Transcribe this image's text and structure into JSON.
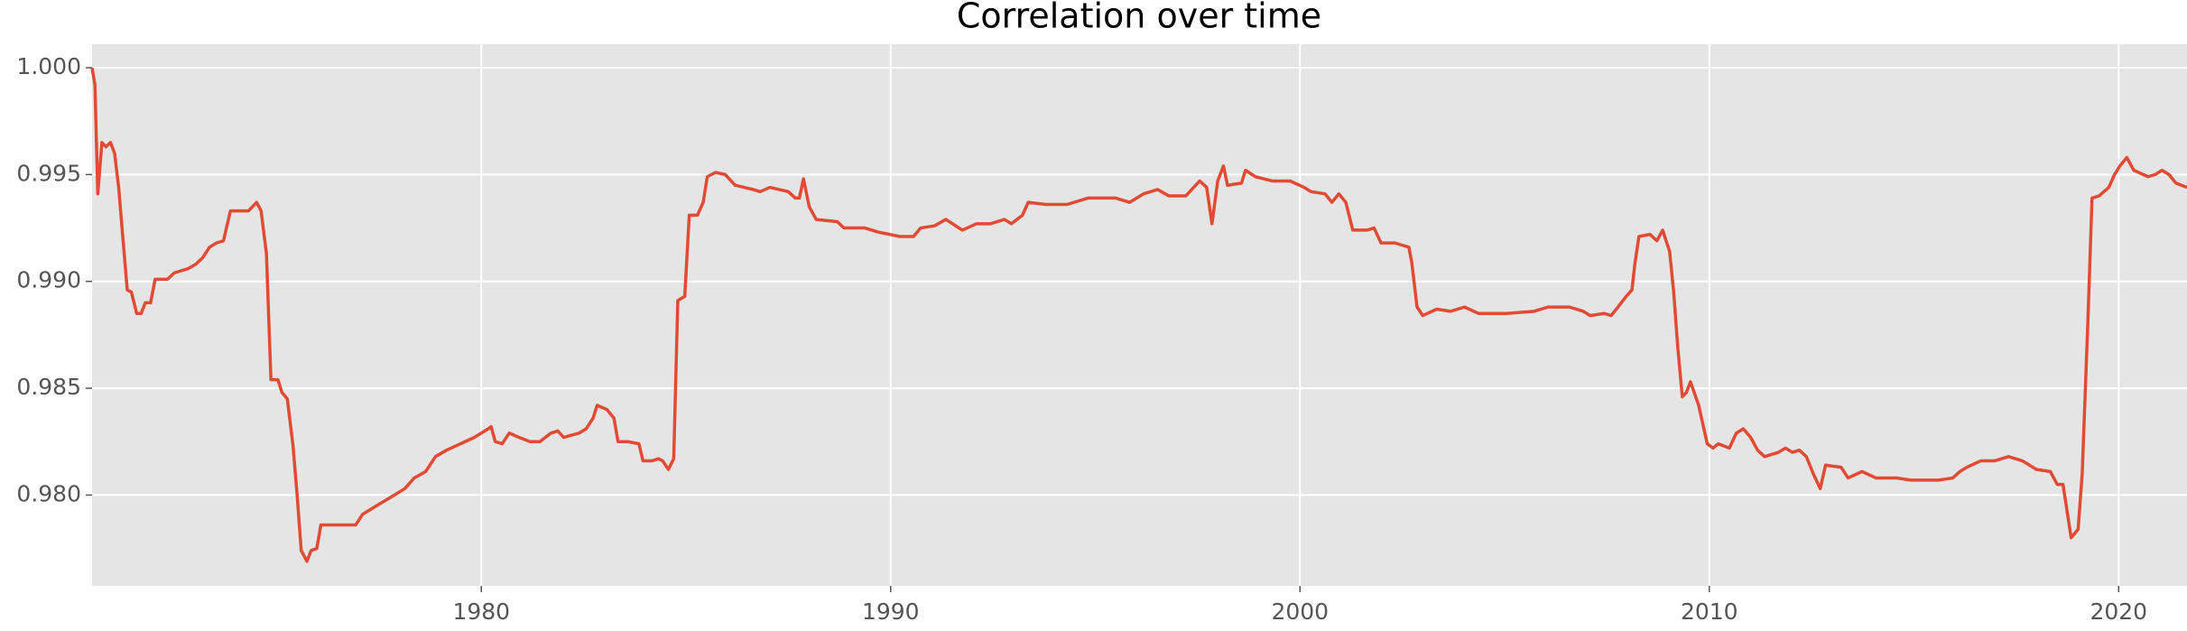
{
  "chart_data": {
    "type": "line",
    "title": "Correlation over time",
    "x": [
      1970.49,
      1970.56,
      1970.63,
      1970.73,
      1970.83,
      1970.94,
      1971.04,
      1971.14,
      1971.24,
      1971.35,
      1971.45,
      1971.58,
      1971.69,
      1971.79,
      1971.92,
      1972.03,
      1972.33,
      1972.5,
      1972.84,
      1973.02,
      1973.19,
      1973.36,
      1973.53,
      1973.7,
      1973.87,
      1974.31,
      1974.51,
      1974.62,
      1974.75,
      1974.86,
      1975.03,
      1975.13,
      1975.26,
      1975.4,
      1975.5,
      1975.6,
      1975.74,
      1975.84,
      1975.98,
      1976.08,
      1976.42,
      1976.59,
      1976.93,
      1977.1,
      1977.44,
      1977.79,
      1978.13,
      1978.36,
      1978.64,
      1978.88,
      1979.15,
      1979.49,
      1979.83,
      1980.17,
      1980.24,
      1980.34,
      1980.51,
      1980.68,
      1980.92,
      1981.19,
      1981.43,
      1981.7,
      1981.87,
      1982.01,
      1982.39,
      1982.56,
      1982.73,
      1982.83,
      1983.07,
      1983.24,
      1983.34,
      1983.58,
      1983.85,
      1983.95,
      1984.16,
      1984.33,
      1984.43,
      1984.57,
      1984.7,
      1984.8,
      1984.97,
      1985.08,
      1985.28,
      1985.42,
      1985.52,
      1985.72,
      1985.96,
      1986.2,
      1986.64,
      1986.81,
      1987.05,
      1987.5,
      1987.67,
      1987.77,
      1987.87,
      1988.01,
      1988.18,
      1988.69,
      1988.86,
      1989.37,
      1989.71,
      1989.98,
      1990.22,
      1990.56,
      1990.73,
      1991.07,
      1991.35,
      1991.75,
      1992.1,
      1992.44,
      1992.78,
      1992.95,
      1993.22,
      1993.36,
      1993.8,
      1994.31,
      1994.82,
      1995.5,
      1995.84,
      1996.18,
      1996.52,
      1996.8,
      1997.21,
      1997.55,
      1997.72,
      1997.85,
      1997.99,
      1998.13,
      1998.23,
      1998.57,
      1998.67,
      1998.91,
      1999.32,
      1999.76,
      2000.1,
      2000.27,
      2000.61,
      2000.78,
      2000.95,
      2001.12,
      2001.29,
      2001.64,
      2001.81,
      2001.98,
      2002.32,
      2002.49,
      2002.66,
      2002.73,
      2002.86,
      2003.0,
      2003.34,
      2003.68,
      2004.02,
      2004.36,
      2005.04,
      2005.72,
      2006.06,
      2006.58,
      2006.92,
      2007.09,
      2007.43,
      2007.6,
      2007.77,
      2007.97,
      2008.11,
      2008.18,
      2008.28,
      2008.55,
      2008.72,
      2008.86,
      2009.03,
      2009.13,
      2009.23,
      2009.34,
      2009.44,
      2009.54,
      2009.74,
      2009.95,
      2010.09,
      2010.22,
      2010.49,
      2010.66,
      2010.83,
      2011.01,
      2011.18,
      2011.35,
      2011.69,
      2011.86,
      2012.03,
      2012.2,
      2012.37,
      2012.54,
      2012.71,
      2012.84,
      2013.22,
      2013.39,
      2013.73,
      2014.07,
      2014.58,
      2014.92,
      2015.26,
      2015.6,
      2015.95,
      2016.12,
      2016.29,
      2016.63,
      2016.97,
      2017.31,
      2017.65,
      2017.99,
      2018.33,
      2018.5,
      2018.64,
      2018.84,
      2019.01,
      2019.11,
      2019.25,
      2019.35,
      2019.52,
      2019.76,
      2019.9,
      2020.03,
      2020.2,
      2020.37,
      2020.72,
      2020.89,
      2021.06,
      2021.23,
      2021.4,
      2021.67
    ],
    "values": [
      1.0,
      0.9992,
      0.9941,
      0.9965,
      0.9963,
      0.9965,
      0.996,
      0.9944,
      0.9921,
      0.9896,
      0.9895,
      0.9885,
      0.9885,
      0.989,
      0.989,
      0.9901,
      0.9901,
      0.9904,
      0.9906,
      0.9908,
      0.9911,
      0.9916,
      0.9918,
      0.9919,
      0.9933,
      0.9933,
      0.9937,
      0.9933,
      0.9913,
      0.9854,
      0.9854,
      0.9848,
      0.9845,
      0.9823,
      0.98,
      0.9774,
      0.9769,
      0.9774,
      0.9775,
      0.9786,
      0.9786,
      0.9786,
      0.9786,
      0.9791,
      0.9795,
      0.9799,
      0.9803,
      0.9808,
      0.9811,
      0.9818,
      0.9821,
      0.9824,
      0.9827,
      0.9831,
      0.9832,
      0.9825,
      0.9824,
      0.9829,
      0.9827,
      0.9825,
      0.9825,
      0.9829,
      0.983,
      0.9827,
      0.9829,
      0.9831,
      0.9836,
      0.9842,
      0.984,
      0.9836,
      0.9825,
      0.9825,
      0.9824,
      0.9816,
      0.9816,
      0.9817,
      0.9816,
      0.9812,
      0.9817,
      0.9891,
      0.9893,
      0.9931,
      0.9931,
      0.9937,
      0.9949,
      0.9951,
      0.995,
      0.9945,
      0.9943,
      0.9942,
      0.9944,
      0.9942,
      0.9939,
      0.9939,
      0.9948,
      0.9935,
      0.9929,
      0.9928,
      0.9925,
      0.9925,
      0.9923,
      0.9922,
      0.9921,
      0.9921,
      0.9925,
      0.9926,
      0.9929,
      0.9924,
      0.9927,
      0.9927,
      0.9929,
      0.9927,
      0.9931,
      0.9937,
      0.9936,
      0.9936,
      0.9939,
      0.9939,
      0.9937,
      0.9941,
      0.9943,
      0.994,
      0.994,
      0.9947,
      0.9944,
      0.9927,
      0.9947,
      0.9954,
      0.9945,
      0.9946,
      0.9952,
      0.9949,
      0.9947,
      0.9947,
      0.9944,
      0.9942,
      0.9941,
      0.9937,
      0.9941,
      0.9937,
      0.9924,
      0.9924,
      0.9925,
      0.9918,
      0.9918,
      0.9917,
      0.9916,
      0.9909,
      0.9888,
      0.9884,
      0.9887,
      0.9886,
      0.9888,
      0.9885,
      0.9885,
      0.9886,
      0.9888,
      0.9888,
      0.9886,
      0.9884,
      0.9885,
      0.9884,
      0.9888,
      0.9893,
      0.9896,
      0.9908,
      0.9921,
      0.9922,
      0.9919,
      0.9924,
      0.9914,
      0.9895,
      0.9869,
      0.9846,
      0.9848,
      0.9853,
      0.9842,
      0.9824,
      0.9822,
      0.9824,
      0.9822,
      0.9829,
      0.9831,
      0.9827,
      0.9821,
      0.9818,
      0.982,
      0.9822,
      0.982,
      0.9821,
      0.9818,
      0.981,
      0.9803,
      0.9814,
      0.9813,
      0.9808,
      0.9811,
      0.9808,
      0.9808,
      0.9807,
      0.9807,
      0.9807,
      0.9808,
      0.9811,
      0.9813,
      0.9816,
      0.9816,
      0.9818,
      0.9816,
      0.9812,
      0.9811,
      0.9805,
      0.9805,
      0.978,
      0.9784,
      0.981,
      0.9882,
      0.9939,
      0.994,
      0.9944,
      0.995,
      0.9954,
      0.9958,
      0.9952,
      0.9949,
      0.995,
      0.9952,
      0.995,
      0.9946,
      0.9944
    ],
    "color": "#E24A33",
    "xlim": [
      1970.49,
      2021.67
    ],
    "xticks": [
      1980,
      1990,
      2000,
      2010,
      2020
    ],
    "ylim": [
      0.97575,
      1.0011
    ],
    "yticks": [
      {
        "value": 0.98,
        "label": "0.980"
      },
      0.985,
      {
        "value": 0.99,
        "label": "0.990"
      },
      0.995,
      {
        "value": 1.0,
        "label": "1.000"
      }
    ],
    "grid": true
  }
}
